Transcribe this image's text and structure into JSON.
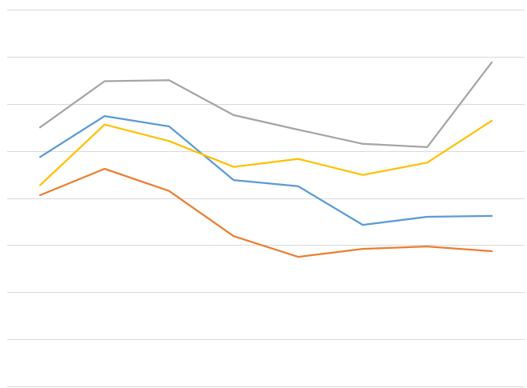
{
  "chart_data": {
    "type": "line",
    "title": "",
    "xlabel": "",
    "ylabel": "",
    "x": [
      1,
      2,
      3,
      4,
      5,
      6,
      7,
      8
    ],
    "ylim": [
      0,
      8
    ],
    "ytick_count": 9,
    "grid": true,
    "legend": "none",
    "series": [
      {
        "color": "#5b9bd5",
        "values": [
          4.87,
          5.74,
          5.52,
          4.38,
          4.25,
          3.43,
          3.6,
          3.62
        ]
      },
      {
        "color": "#ed7d31",
        "values": [
          4.06,
          4.62,
          4.15,
          3.19,
          2.75,
          2.92,
          2.97,
          2.87
        ]
      },
      {
        "color": "#a5a5a5",
        "values": [
          5.5,
          6.48,
          6.5,
          5.76,
          5.45,
          5.15,
          5.08,
          6.88
        ]
      },
      {
        "color": "#ffc000",
        "values": [
          4.27,
          5.56,
          5.21,
          4.66,
          4.83,
          4.49,
          4.75,
          5.64
        ]
      }
    ]
  }
}
